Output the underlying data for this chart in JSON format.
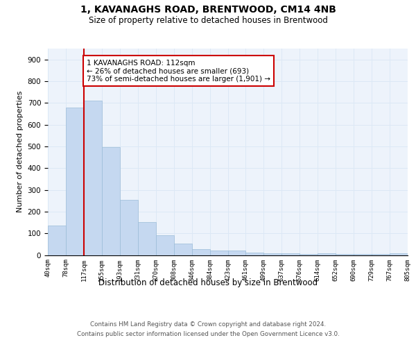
{
  "title": "1, KAVANAGHS ROAD, BRENTWOOD, CM14 4NB",
  "subtitle": "Size of property relative to detached houses in Brentwood",
  "xlabel": "Distribution of detached houses by size in Brentwood",
  "ylabel": "Number of detached properties",
  "bar_values": [
    135,
    680,
    710,
    495,
    255,
    152,
    90,
    52,
    28,
    20,
    20,
    10,
    8,
    8,
    5,
    8,
    5,
    5,
    5,
    8
  ],
  "bin_labels": [
    "40sqm",
    "78sqm",
    "117sqm",
    "155sqm",
    "193sqm",
    "231sqm",
    "270sqm",
    "308sqm",
    "346sqm",
    "384sqm",
    "423sqm",
    "461sqm",
    "499sqm",
    "537sqm",
    "576sqm",
    "614sqm",
    "652sqm",
    "690sqm",
    "729sqm",
    "767sqm",
    "805sqm"
  ],
  "bar_color": "#c5d8f0",
  "bar_edge_color": "#9bbcd8",
  "annotation_line1": "1 KAVANAGHS ROAD: 112sqm",
  "annotation_line2": "← 26% of detached houses are smaller (693)",
  "annotation_line3": "73% of semi-detached houses are larger (1,901) →",
  "annotation_box_color": "#cc0000",
  "red_line_index": 2,
  "grid_color": "#dce8f5",
  "bg_color": "#edf3fb",
  "footer_line1": "Contains HM Land Registry data © Crown copyright and database right 2024.",
  "footer_line2": "Contains public sector information licensed under the Open Government Licence v3.0.",
  "ylim": [
    0,
    950
  ],
  "yticks": [
    0,
    100,
    200,
    300,
    400,
    500,
    600,
    700,
    800,
    900
  ]
}
